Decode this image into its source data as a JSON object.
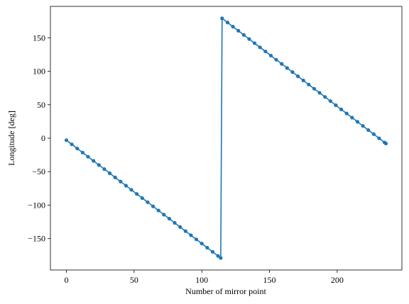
{
  "chart_data": {
    "type": "line",
    "xlabel": "Number of mirror point",
    "ylabel": "Longitude [deg]",
    "x": [
      0,
      4,
      8,
      12,
      16,
      20,
      24,
      28,
      32,
      36,
      40,
      44,
      48,
      52,
      56,
      60,
      64,
      68,
      72,
      76,
      80,
      84,
      88,
      92,
      96,
      100,
      104,
      108,
      112,
      114,
      115,
      119,
      123,
      127,
      131,
      135,
      139,
      143,
      147,
      151,
      155,
      159,
      163,
      167,
      171,
      175,
      179,
      183,
      187,
      191,
      195,
      199,
      203,
      207,
      211,
      215,
      219,
      223,
      227,
      231,
      235,
      236
    ],
    "series": [
      {
        "color": "#1f77b4",
        "values": [
          -3,
          -9.2,
          -15.4,
          -21.5,
          -27.7,
          -33.9,
          -40.1,
          -46.2,
          -52.4,
          -58.6,
          -64.8,
          -70.9,
          -77.1,
          -83.3,
          -89.5,
          -95.6,
          -101.8,
          -108,
          -114.2,
          -120.3,
          -126.5,
          -132.7,
          -138.9,
          -145,
          -151.2,
          -157.4,
          -163.6,
          -169.8,
          -175.9,
          -179,
          179,
          172.8,
          166.6,
          160.5,
          154.3,
          148.1,
          141.9,
          135.7,
          129.6,
          123.4,
          117.2,
          111,
          104.8,
          98.7,
          92.5,
          86.3,
          80.1,
          73.9,
          67.8,
          61.6,
          55.4,
          49.2,
          43,
          36.9,
          30.7,
          24.5,
          18.3,
          12.1,
          6,
          -0.2,
          -6.4,
          -8
        ]
      }
    ],
    "xlim": [
      -11.8,
      247.8
    ],
    "ylim": [
      -196.9,
      196.9
    ],
    "xticks": [
      0,
      50,
      100,
      150,
      200
    ],
    "yticks": [
      {
        "value": -150,
        "label": "−150"
      },
      {
        "value": -100,
        "label": "−100"
      },
      {
        "value": -50,
        "label": "−50"
      },
      0,
      50,
      100,
      150
    ]
  }
}
